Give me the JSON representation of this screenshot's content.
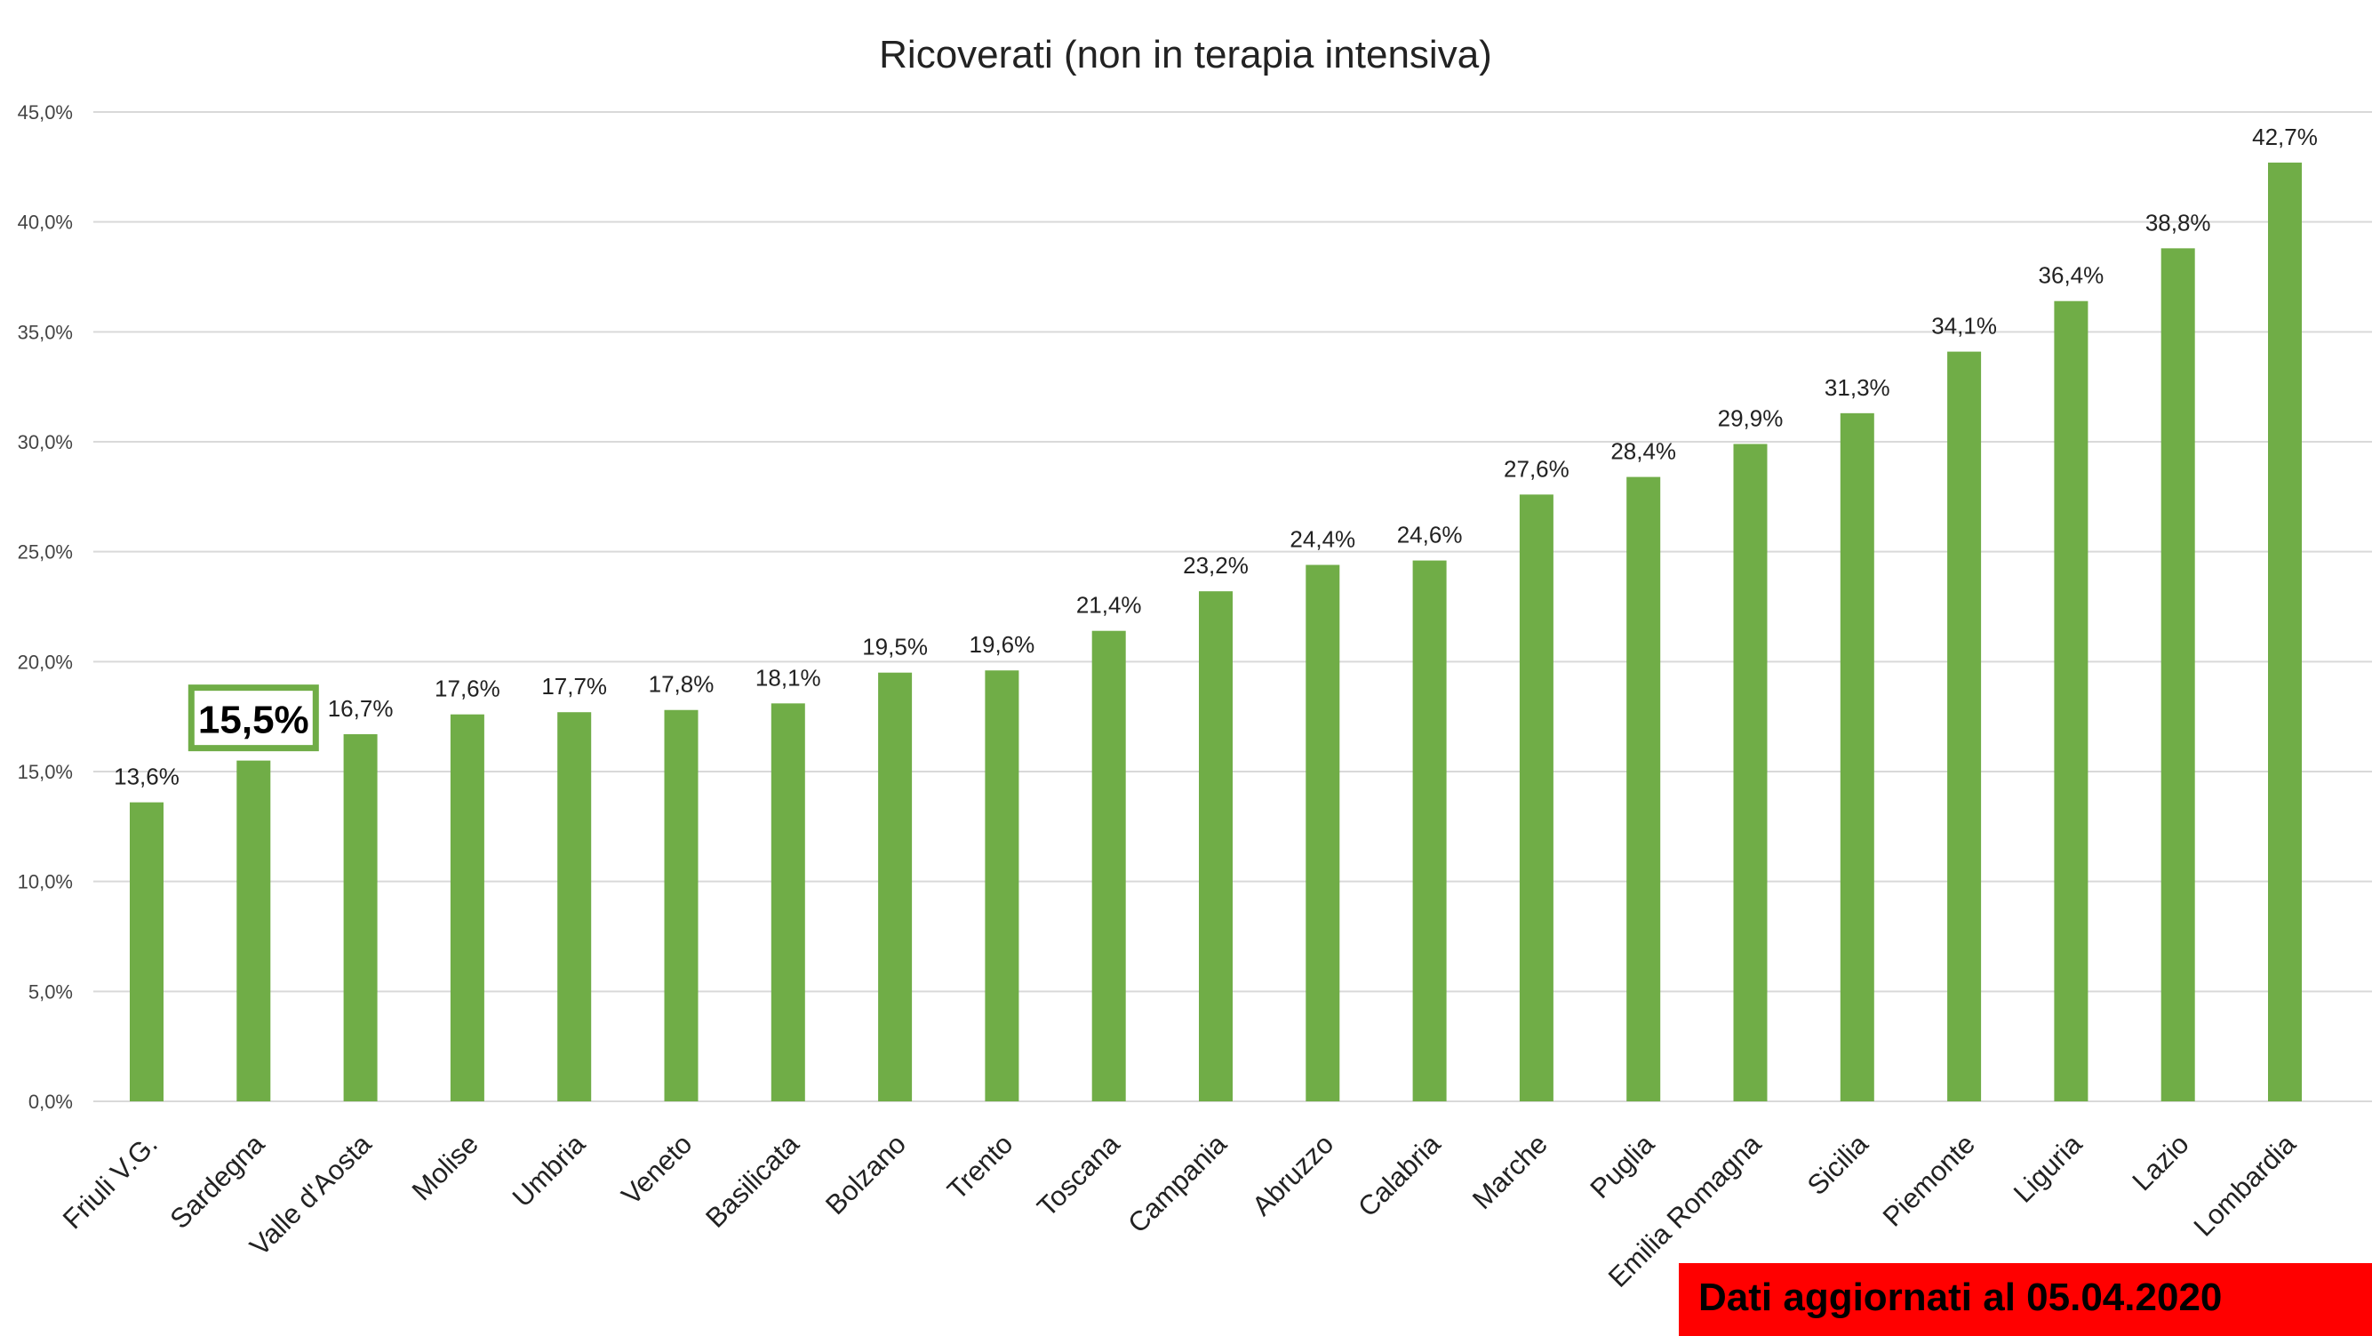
{
  "chart_data": {
    "type": "bar",
    "title": "Ricoverati (non in terapia intensiva)",
    "xlabel": "",
    "ylabel": "",
    "ylim": [
      0,
      45
    ],
    "yticks": [
      0,
      5,
      10,
      15,
      20,
      25,
      30,
      35,
      40,
      45
    ],
    "ytick_labels": [
      "0,0%",
      "5,0%",
      "10,0%",
      "15,0%",
      "20,0%",
      "25,0%",
      "30,0%",
      "35,0%",
      "40,0%",
      "45,0%"
    ],
    "grid": true,
    "bar_color": "#70ad47",
    "categories": [
      "Friuli V.G.",
      "Sardegna",
      "Valle d'Aosta",
      "Molise",
      "Umbria",
      "Veneto",
      "Basilicata",
      "Bolzano",
      "Trento",
      "Toscana",
      "Campania",
      "Abruzzo",
      "Calabria",
      "Marche",
      "Puglia",
      "Emilia Romagna",
      "Sicilia",
      "Piemonte",
      "Liguria",
      "Lazio",
      "Lombardia"
    ],
    "values": [
      13.6,
      15.5,
      16.7,
      17.6,
      17.7,
      17.8,
      18.1,
      19.5,
      19.6,
      21.4,
      23.2,
      24.4,
      24.6,
      27.6,
      28.4,
      29.9,
      31.3,
      34.1,
      36.4,
      38.8,
      42.7
    ],
    "data_labels": [
      "13,6%",
      "15,5%",
      "16,7%",
      "17,6%",
      "17,7%",
      "17,8%",
      "18,1%",
      "19,5%",
      "19,6%",
      "21,4%",
      "23,2%",
      "24,4%",
      "24,6%",
      "27,6%",
      "28,4%",
      "29,9%",
      "31,3%",
      "34,1%",
      "36,4%",
      "38,8%",
      "42,7%"
    ],
    "highlight_index": 1
  },
  "footer": {
    "text": "Dati aggiornati al 05.04.2020",
    "color": "#ff0000"
  }
}
